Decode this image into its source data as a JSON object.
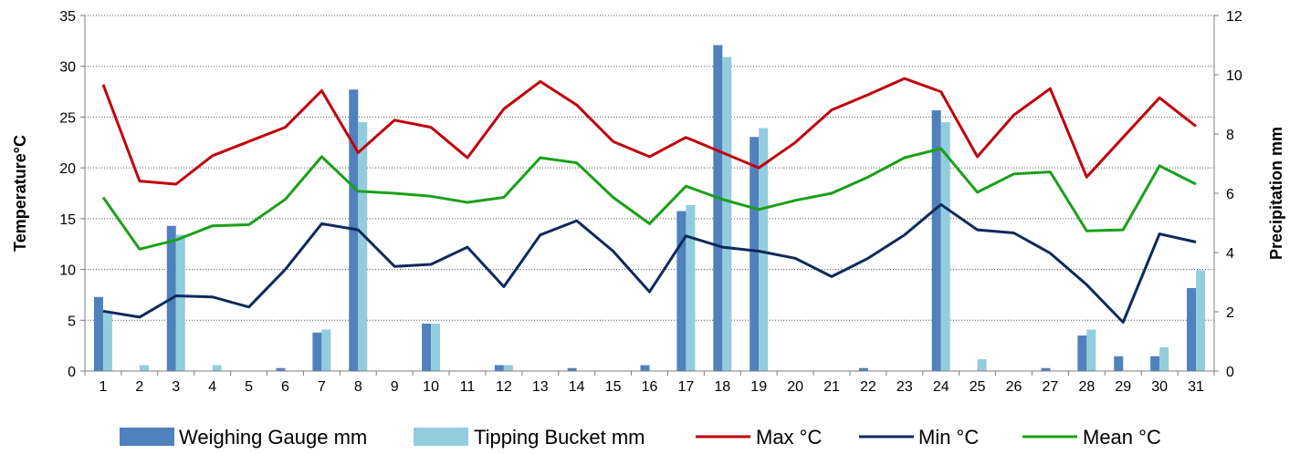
{
  "chart_data": {
    "type": "bar",
    "days": [
      "1",
      "2",
      "3",
      "4",
      "5",
      "6",
      "7",
      "8",
      "9",
      "10",
      "11",
      "12",
      "13",
      "14",
      "15",
      "16",
      "17",
      "18",
      "19",
      "20",
      "21",
      "22",
      "23",
      "24",
      "25",
      "26",
      "27",
      "28",
      "29",
      "30",
      "31"
    ],
    "y_left": {
      "label": "Temperature°C",
      "min": 0,
      "max": 35,
      "ticks": [
        "0",
        "5",
        "10",
        "15",
        "20",
        "25",
        "30",
        "35"
      ]
    },
    "y_right": {
      "label": "Precipitation mm",
      "min": 0,
      "max": 12,
      "ticks": [
        "0",
        "2",
        "4",
        "6",
        "8",
        "10",
        "12"
      ]
    },
    "grid": true,
    "legend_position": "bottom",
    "bar_series": [
      {
        "name": "Weighing Gauge mm",
        "color": "#4f81bd",
        "axis": "right",
        "values": [
          2.5,
          0,
          4.9,
          0,
          0,
          0.1,
          1.3,
          9.5,
          0,
          1.6,
          0,
          0.2,
          0,
          0.1,
          0,
          0.2,
          5.4,
          11.0,
          7.9,
          0,
          0,
          0.1,
          0,
          8.8,
          0,
          0,
          0.1,
          1.2,
          0.5,
          0.5,
          2.8
        ]
      },
      {
        "name": "Tipping Bucket mm",
        "color": "#93cddd",
        "axis": "right",
        "values": [
          2.0,
          0.2,
          4.6,
          0.2,
          0,
          0,
          1.4,
          8.4,
          0,
          1.6,
          0,
          0.2,
          0,
          0,
          0,
          0,
          5.6,
          10.6,
          8.2,
          0,
          0,
          0,
          0,
          8.4,
          0.4,
          0,
          0,
          1.4,
          0,
          0.8,
          3.4
        ]
      }
    ],
    "line_series": [
      {
        "name": "Max °C",
        "color": "#c0000c",
        "axis": "left",
        "values": [
          28.2,
          18.7,
          18.4,
          21.2,
          22.6,
          24.0,
          27.6,
          21.5,
          24.7,
          24.0,
          21.0,
          25.8,
          28.5,
          26.2,
          22.6,
          21.1,
          23.0,
          21.5,
          20.0,
          22.5,
          25.7,
          27.2,
          28.8,
          27.5,
          21.1,
          25.2,
          27.8,
          19.1,
          23.0,
          26.9,
          24.1
        ]
      },
      {
        "name": "Min °C",
        "color": "#0e2a5c",
        "axis": "left",
        "values": [
          5.9,
          5.3,
          7.4,
          7.3,
          6.3,
          10.0,
          14.5,
          13.9,
          10.3,
          10.5,
          12.2,
          8.3,
          13.4,
          14.8,
          11.8,
          7.8,
          13.3,
          12.2,
          11.8,
          11.1,
          9.3,
          11.1,
          13.4,
          16.4,
          13.9,
          13.6,
          11.6,
          8.5,
          4.8,
          13.5,
          12.7
        ]
      },
      {
        "name": "Mean °C",
        "color": "#1aa01a",
        "axis": "left",
        "values": [
          17.1,
          12.0,
          12.9,
          14.3,
          14.4,
          16.9,
          21.1,
          17.7,
          17.5,
          17.2,
          16.6,
          17.1,
          21.0,
          20.5,
          17.1,
          14.5,
          18.2,
          16.9,
          15.9,
          16.8,
          17.5,
          19.1,
          21.0,
          21.9,
          17.6,
          19.4,
          19.6,
          13.8,
          13.9,
          20.2,
          18.4
        ]
      }
    ]
  }
}
